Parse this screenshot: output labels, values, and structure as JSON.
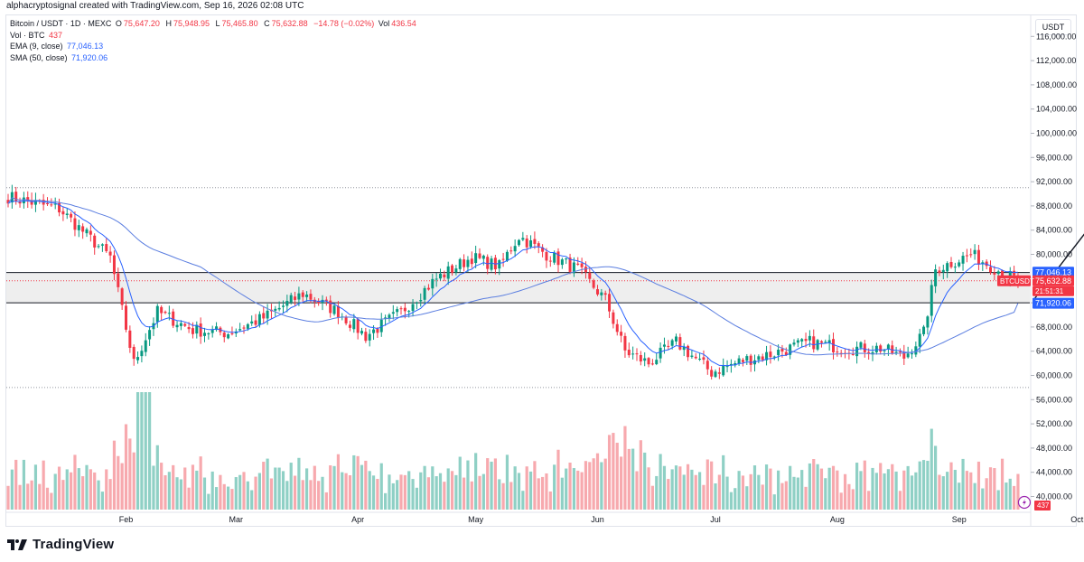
{
  "header": {
    "author_line": "alphacryptosignal created with TradingView.com, Sep 16, 2026 02:08 UTC"
  },
  "legend": {
    "symbol": "Bitcoin / USDT · 1D · MEXC",
    "open_label": "O",
    "open": "75,647.20",
    "high_label": "H",
    "high": "75,948.95",
    "low_label": "L",
    "low": "75,465.80",
    "close_label": "C",
    "close": "75,632.88",
    "change": "−14.78 (−0.02%)",
    "vol_label": "Vol",
    "vol": "436.54",
    "vol_line": "Vol · BTC",
    "vol_value": "437",
    "ema_line": "EMA (9, close)",
    "ema_value": "77,046.13",
    "sma_line": "SMA (50, close)",
    "sma_value": "71,920.06"
  },
  "axis": {
    "currency": "USDT",
    "price_ticks": [
      "116,000.00",
      "112,000.00",
      "108,000.00",
      "104,000.00",
      "100,000.00",
      "96,000.00",
      "92,000.00",
      "88,000.00",
      "84,000.00",
      "80,000.00",
      "76,000.00",
      "72,000.00",
      "68,000.00",
      "64,000.00",
      "60,000.00",
      "56,000.00",
      "52,000.00",
      "48,000.00",
      "44,000.00",
      "40,000.00"
    ],
    "time_ticks": [
      "Feb",
      "Mar",
      "Apr",
      "May",
      "Jun",
      "Jul",
      "Aug",
      "Sep",
      "Oct"
    ]
  },
  "price_labels": {
    "ema": "77,046.13",
    "symbol_tag": "BTCUSDT",
    "last": "75,632.88",
    "countdown": "21:51:31",
    "sma": "71,920.06",
    "volume": "437"
  },
  "colors": {
    "up": "#089981",
    "down": "#f23645",
    "ema": "#2962ff",
    "sma": "#5b7ee0",
    "volume_up": "#8fd0c5",
    "volume_down": "#f7a9ae",
    "zone": "#e8e8e8"
  },
  "icons": {
    "flash": "flash-icon",
    "logo": "tradingview-logo"
  },
  "brand": {
    "name": "TradingView"
  },
  "chart_data": {
    "type": "candlestick",
    "symbol": "BTCUSDT",
    "timeframe": "1D",
    "ylim": [
      38000,
      118000
    ],
    "x_start": "2026-01-02",
    "zone": [
      72000,
      77000
    ],
    "levels": [
      91000,
      58000
    ],
    "arrow": {
      "from": [
        "2026-09-20",
        72500
      ],
      "to": [
        "2026-10-09",
        88500
      ]
    },
    "anchors": [
      [
        "2026-01-02",
        89500
      ],
      [
        "2026-01-15",
        87500
      ],
      [
        "2026-01-28",
        79500
      ],
      [
        "2026-02-03",
        62000
      ],
      [
        "2026-02-09",
        70500
      ],
      [
        "2026-02-18",
        67500
      ],
      [
        "2026-02-27",
        67000
      ],
      [
        "2026-03-08",
        69500
      ],
      [
        "2026-03-18",
        73500
      ],
      [
        "2026-03-27",
        70500
      ],
      [
        "2026-04-03",
        66500
      ],
      [
        "2026-04-12",
        70500
      ],
      [
        "2026-04-21",
        76000
      ],
      [
        "2026-04-30",
        79500
      ],
      [
        "2026-05-07",
        78000
      ],
      [
        "2026-05-12",
        83000
      ],
      [
        "2026-05-19",
        80000
      ],
      [
        "2026-05-27",
        77500
      ],
      [
        "2026-06-03",
        72500
      ],
      [
        "2026-06-08",
        64000
      ],
      [
        "2026-06-14",
        62000
      ],
      [
        "2026-06-21",
        65500
      ],
      [
        "2026-06-30",
        60500
      ],
      [
        "2026-07-08",
        62500
      ],
      [
        "2026-07-15",
        63500
      ],
      [
        "2026-07-25",
        65500
      ],
      [
        "2026-08-03",
        64500
      ],
      [
        "2026-08-12",
        64500
      ],
      [
        "2026-08-18",
        63000
      ],
      [
        "2026-08-23",
        67000
      ],
      [
        "2026-08-26",
        77500
      ],
      [
        "2026-09-04",
        80000
      ],
      [
        "2026-09-08",
        78500
      ],
      [
        "2026-09-12",
        77000
      ],
      [
        "2026-09-16",
        75600
      ]
    ],
    "ema_last": 77046.13,
    "sma_last": 71920.06,
    "last_close": 75632.88
  }
}
